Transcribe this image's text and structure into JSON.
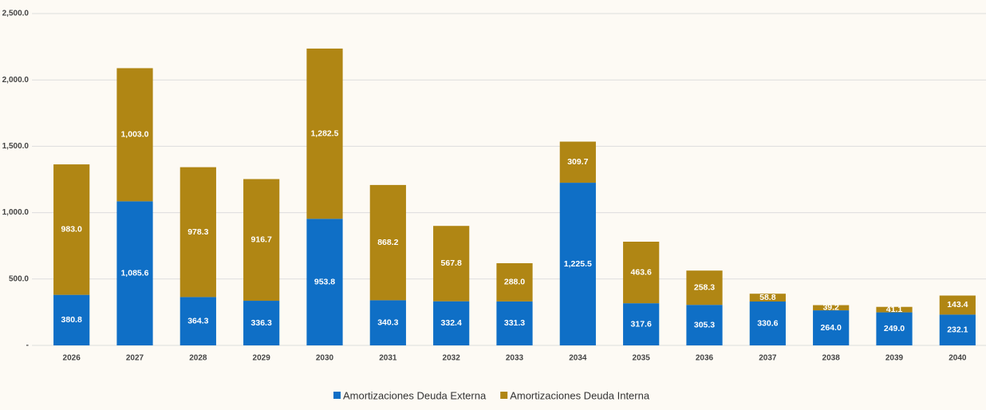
{
  "chart_data": {
    "type": "stacked_bar",
    "categories": [
      "2026",
      "2027",
      "2028",
      "2029",
      "2030",
      "2031",
      "2032",
      "2033",
      "2034",
      "2035",
      "2036",
      "2037",
      "2038",
      "2039",
      "2040"
    ],
    "series": [
      {
        "name": "Amortizaciones Deuda Externa",
        "color": "#0f6fc6",
        "values": [
          380.8,
          1085.6,
          364.3,
          336.3,
          953.8,
          340.3,
          332.4,
          331.3,
          1225.5,
          317.6,
          305.3,
          330.6,
          264.0,
          249.0,
          232.1
        ],
        "value_labels": [
          "380.8",
          "1,085.6",
          "364.3",
          "336.3",
          "953.8",
          "340.3",
          "332.4",
          "331.3",
          "1,225.5",
          "317.6",
          "305.3",
          "330.6",
          "264.0",
          "249.0",
          "232.1"
        ]
      },
      {
        "name": "Amortizaciones Deuda Interna",
        "color": "#b08614",
        "values": [
          983.0,
          1003.0,
          978.3,
          916.7,
          1282.5,
          868.2,
          567.8,
          288.0,
          309.7,
          463.6,
          258.3,
          58.8,
          39.2,
          41.1,
          143.4
        ],
        "value_labels": [
          "983.0",
          "1,003.0",
          "978.3",
          "916.7",
          "1,282.5",
          "868.2",
          "567.8",
          "288.0",
          "309.7",
          "463.6",
          "258.3",
          "58.8",
          "39.2",
          "41.1",
          "143.4"
        ]
      }
    ],
    "ylim": [
      0,
      2500
    ],
    "yticks": [
      {
        "value": 0,
        "label": "-"
      },
      {
        "value": 500,
        "label": "500.0"
      },
      {
        "value": 1000,
        "label": "1,000.0"
      },
      {
        "value": 1500,
        "label": "1,500.0"
      },
      {
        "value": 2000,
        "label": "2,000.0"
      },
      {
        "value": 2500,
        "label": "2,500.0"
      }
    ],
    "grid": true,
    "legend": "bottom"
  }
}
